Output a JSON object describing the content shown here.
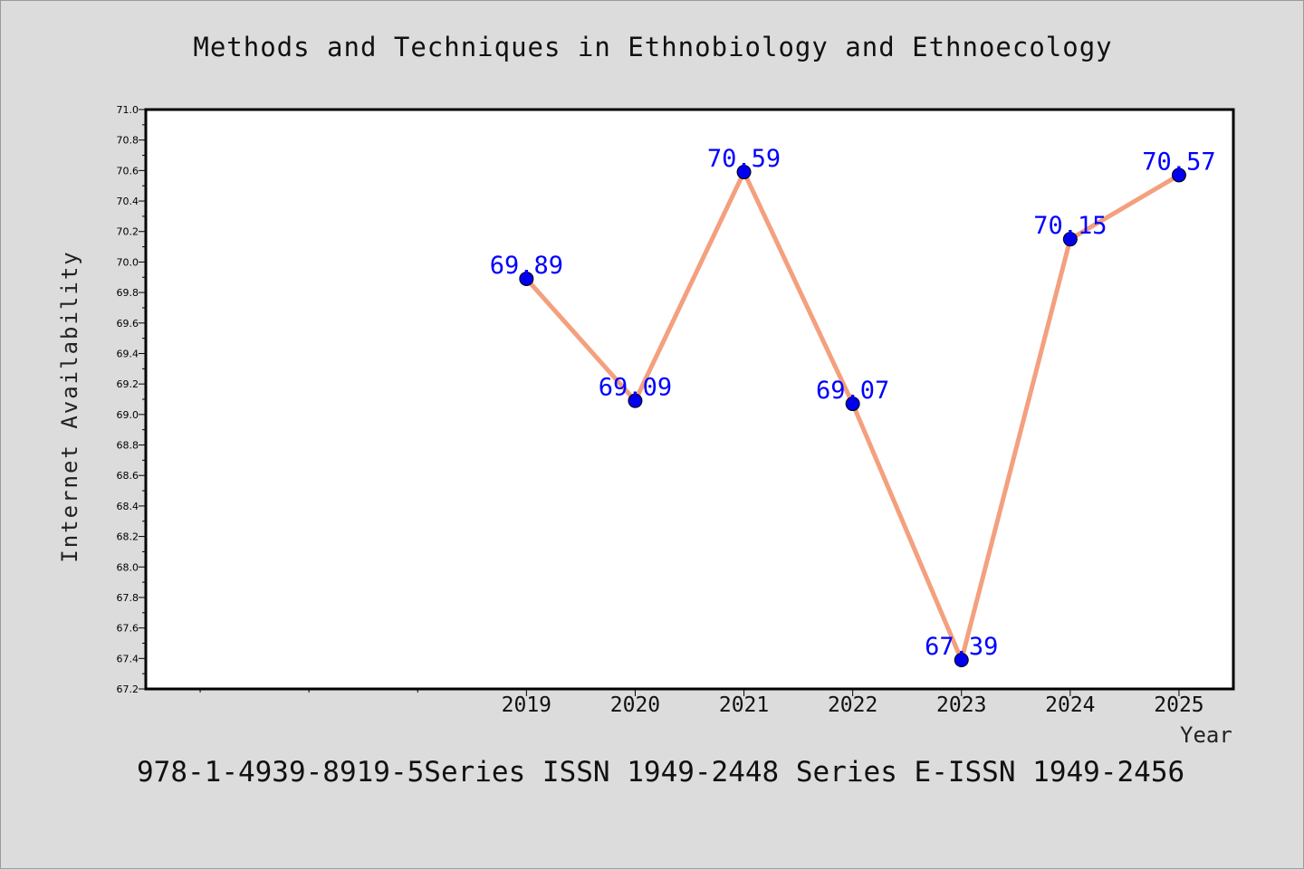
{
  "chart_data": {
    "type": "line",
    "title": "Methods and Techniques in Ethnobiology and Ethnoecology",
    "xlabel": "Year",
    "ylabel": "Internet Availability",
    "x": [
      2019,
      2020,
      2021,
      2022,
      2023,
      2024,
      2025
    ],
    "series": [
      {
        "values": [
          69.89,
          69.09,
          70.59,
          69.07,
          67.39,
          70.15,
          70.57
        ]
      }
    ],
    "data_labels": [
      "69.89",
      "69.09",
      "70.59",
      "69.07",
      "67.39",
      "70.15",
      "70.57"
    ],
    "x_tick_labels": [
      "2019",
      "2020",
      "2021",
      "2022",
      "2023",
      "2024",
      "2025"
    ],
    "x_minor_ticks": [
      2016,
      2017,
      2018
    ],
    "xlim": [
      2015.5,
      2025.5
    ],
    "ylim": [
      67.2,
      71.0
    ],
    "y_tick_labels": [
      "67.2",
      "67.4",
      "67.6",
      "67.8",
      "68.0",
      "68.2",
      "68.4",
      "68.6",
      "68.8",
      "69.0",
      "69.2",
      "69.4",
      "69.6",
      "69.8",
      "70.0",
      "70.2",
      "70.4",
      "70.6",
      "70.8",
      "71.0"
    ],
    "grid": false,
    "line_color": "#f4a07e",
    "marker_color": "#0000ee",
    "label_color": "#0000ff"
  },
  "footer": "978-1-4939-8919-5Series ISSN 1949-2448 Series E-ISSN 1949-2456"
}
